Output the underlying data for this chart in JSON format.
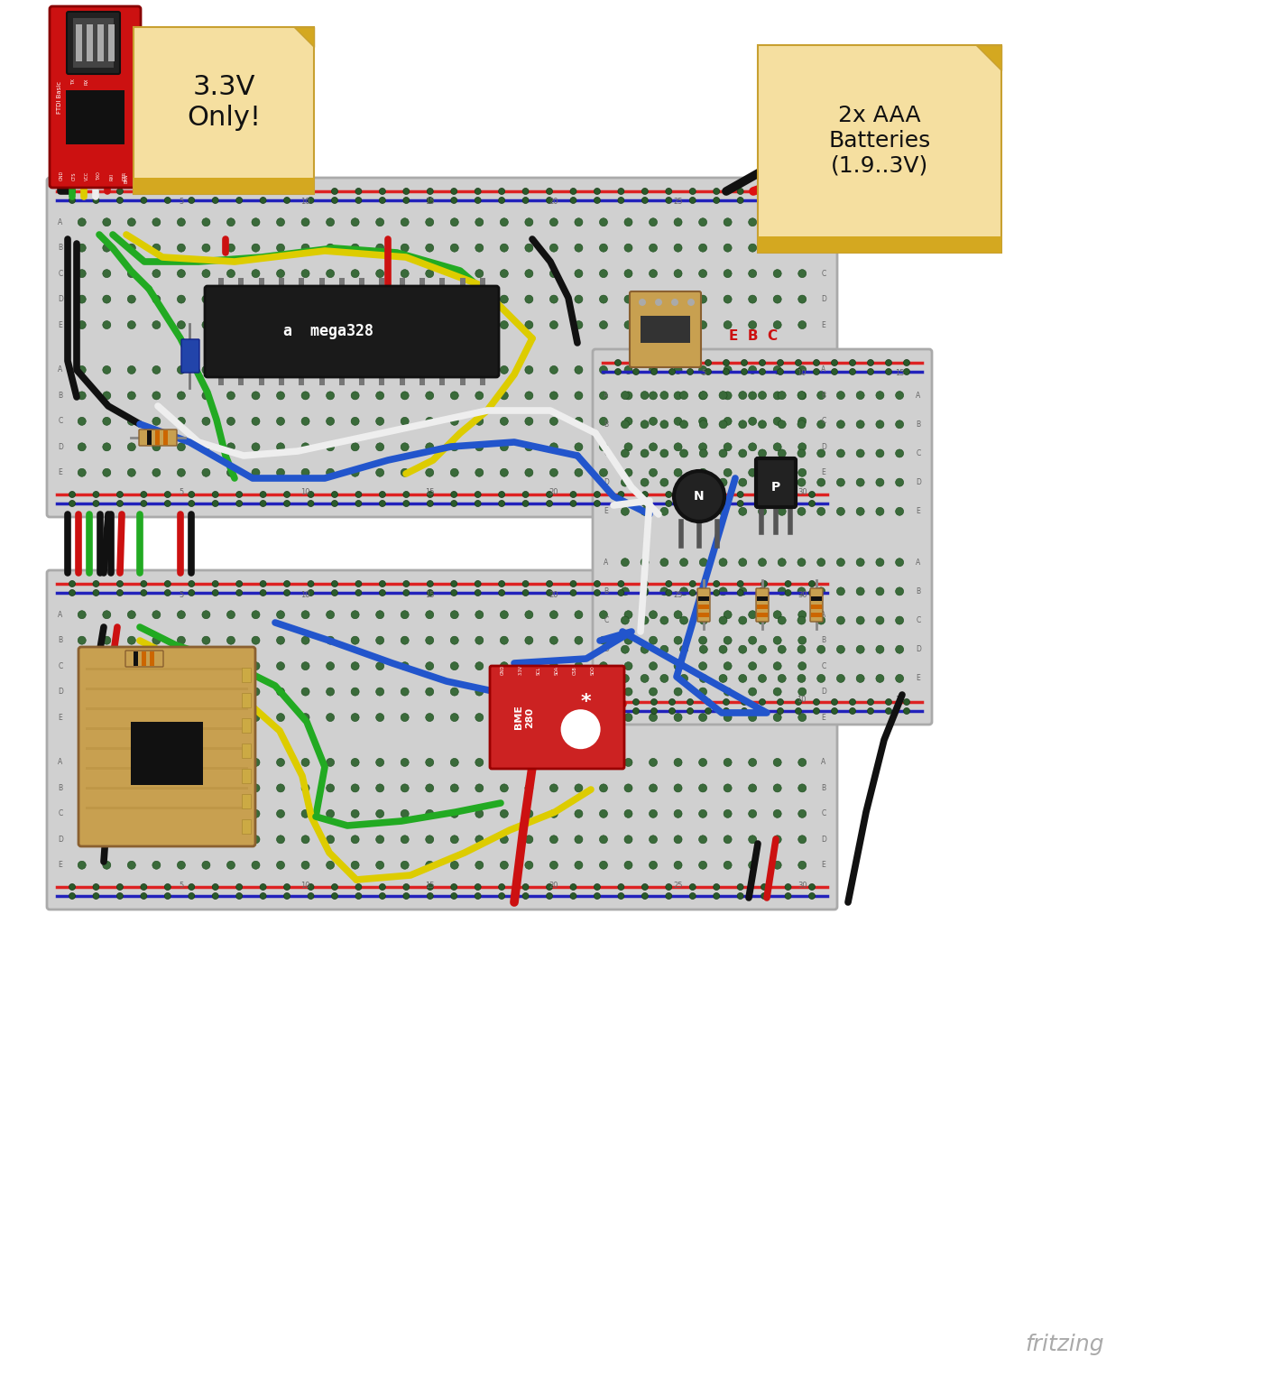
{
  "bg_color": "#ffffff",
  "note1_text": "3.3V\nOnly!",
  "note2_text": "2x AAA\nBatteries\n(1.9..3V)",
  "ebc_text": "E  B  C",
  "fritzing_text": "fritzing",
  "power_red": "#dd1111",
  "power_blue": "#1111cc",
  "wire_black": "#111111",
  "wire_red": "#cc1111",
  "wire_green": "#22aa22",
  "wire_yellow": "#ddcc00",
  "wire_white": "#eeeeee",
  "wire_blue": "#2255cc",
  "chip_color": "#1a1a1a",
  "lora_color": "#c8a050",
  "bme_color": "#cc2222",
  "ftdi_color": "#cc1111",
  "board_color": "#d0d0d0",
  "board_edge": "#aaaaaa",
  "hole_fill": "#3a6a3a",
  "hole_edge": "#1a4a1a",
  "rail_red": "#dd2222",
  "rail_blue": "#2222bb",
  "note_fill": "#f5dfa0",
  "note_gold": "#d4a820",
  "note_edge": "#c8a030",
  "resistor_body": "#c8a050",
  "resistor_band1": "#111111",
  "resistor_band2": "#cc6600",
  "resistor_band3": "#cc6600",
  "cap_color": "#2244aa"
}
